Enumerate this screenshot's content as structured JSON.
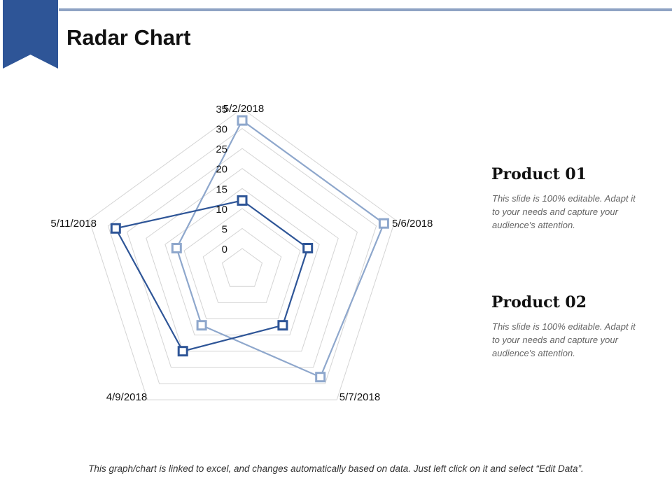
{
  "page": {
    "title": "Radar Chart",
    "footer_note": "This graph/chart is linked to excel, and changes automatically based on data. Just left click on it and select “Edit Data”.",
    "accent_color": "#2e5597"
  },
  "legend": [
    {
      "title": "Product 01",
      "description": "This slide is 100% editable. Adapt it to your needs and capture your audience's attention."
    },
    {
      "title": "Product 02",
      "description": "This slide is 100% editable. Adapt it to your needs and capture your audience's attention."
    }
  ],
  "chart_data": {
    "type": "radar",
    "categories": [
      "5/2/2018",
      "5/6/2018",
      "5/7/2018",
      "4/9/2018",
      "5/11/2018"
    ],
    "ticks": [
      0,
      5,
      10,
      15,
      20,
      25,
      30,
      35
    ],
    "rlim": [
      0,
      35
    ],
    "series": [
      {
        "color": "#8ea7cc",
        "values": [
          32,
          32,
          28,
          12,
          12
        ]
      },
      {
        "color": "#2e5597",
        "values": [
          12,
          12,
          12,
          20,
          28
        ]
      }
    ],
    "grid": true
  }
}
